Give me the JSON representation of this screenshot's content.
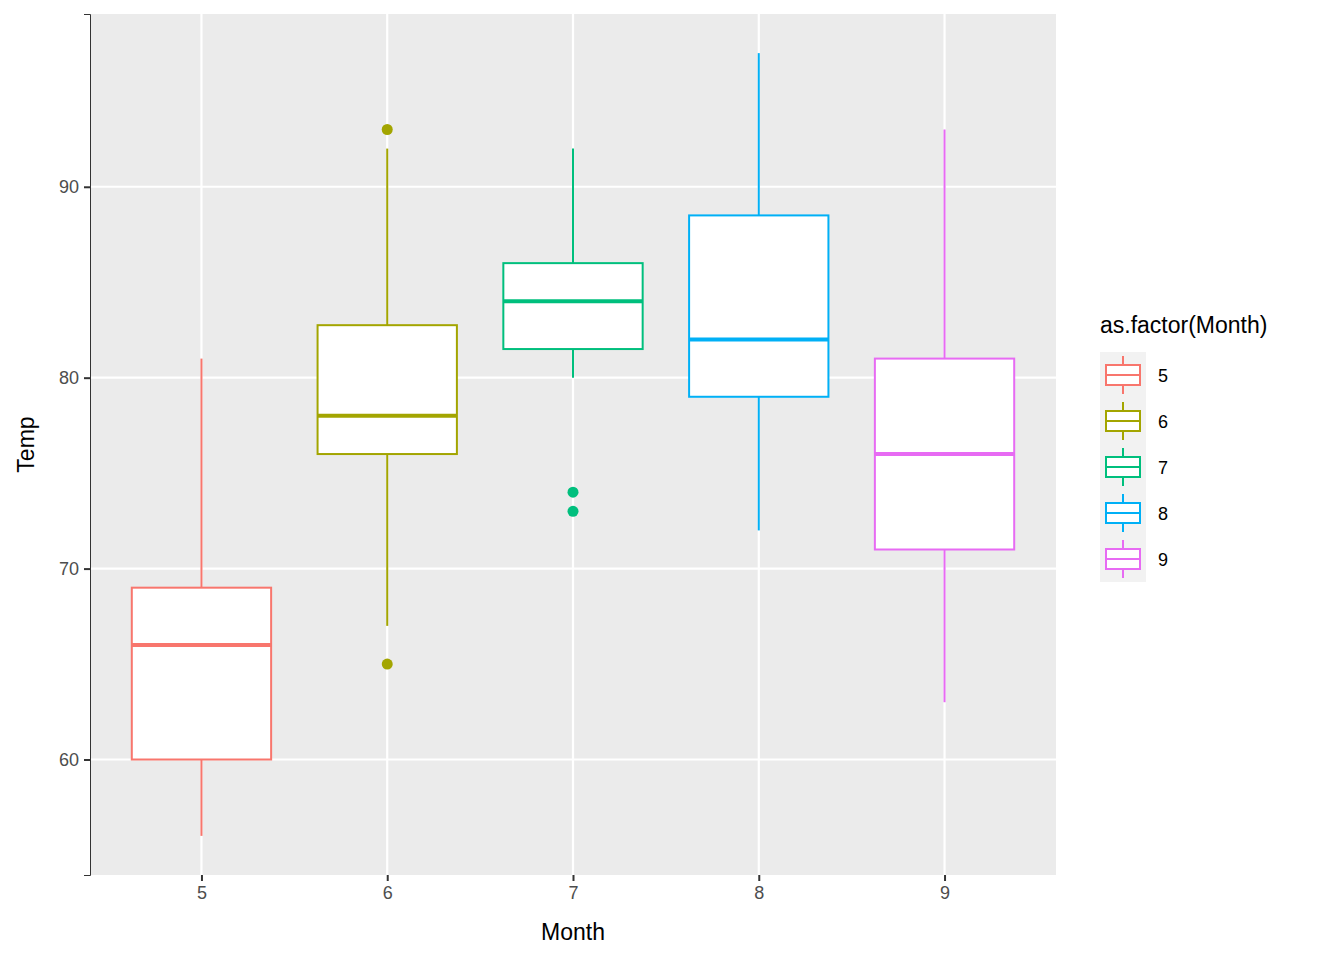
{
  "chart_data": {
    "type": "box",
    "x_label": "Month",
    "y_label": "Temp",
    "legend_title": "as.factor(Month)",
    "categories": [
      "5",
      "6",
      "7",
      "8",
      "9"
    ],
    "colors": [
      "#F8766D",
      "#A3A500",
      "#00BF7D",
      "#00B0F6",
      "#E76BF3"
    ],
    "boxes": [
      {
        "whisker_low": 56,
        "q1": 60,
        "median": 66,
        "q3": 69,
        "whisker_high": 81,
        "outliers": []
      },
      {
        "whisker_low": 67,
        "q1": 76,
        "median": 78,
        "q3": 82.75,
        "whisker_high": 92,
        "outliers": [
          93,
          65
        ]
      },
      {
        "whisker_low": 80,
        "q1": 81.5,
        "median": 84,
        "q3": 86,
        "whisker_high": 92,
        "outliers": [
          74,
          73
        ]
      },
      {
        "whisker_low": 72,
        "q1": 79,
        "median": 82,
        "q3": 88.5,
        "whisker_high": 97,
        "outliers": []
      },
      {
        "whisker_low": 63,
        "q1": 71,
        "median": 76,
        "q3": 81,
        "whisker_high": 93,
        "outliers": []
      }
    ],
    "ylim": [
      53.95,
      99.05
    ],
    "yticks": [
      60,
      70,
      80,
      90
    ],
    "grid": true,
    "legend": "right"
  }
}
